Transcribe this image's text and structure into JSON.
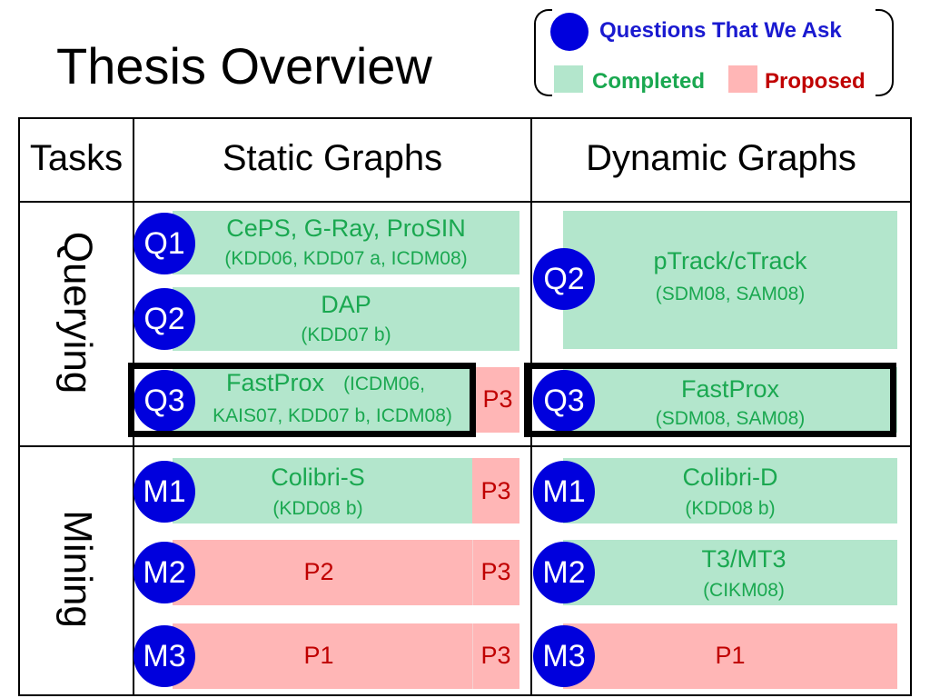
{
  "title": "Thesis Overview",
  "legend": {
    "questions": "Questions That We Ask",
    "completed": "Completed",
    "proposed": "Proposed",
    "colors": {
      "question": "#0000dd",
      "completed": "#b3e6cc",
      "proposed": "#ffb6b6"
    }
  },
  "headers": {
    "tasks": "Tasks",
    "static": "Static Graphs",
    "dynamic": "Dynamic Graphs"
  },
  "rows": {
    "querying": "Querying",
    "mining": "Mining"
  },
  "static": {
    "q1": {
      "label": "Q1",
      "main": "CePS, G-Ray, ProSIN",
      "sub": "(KDD06, KDD07 a, ICDM08)"
    },
    "q2": {
      "label": "Q2",
      "main": "DAP",
      "sub": "(KDD07 b)"
    },
    "q3": {
      "label": "Q3",
      "main": "FastProx",
      "main_cite": "(ICDM06,",
      "sub": "KAIS07, KDD07 b,  ICDM08)",
      "p": "P3"
    },
    "m1": {
      "label": "M1",
      "main": "Colibri-S",
      "sub": "(KDD08 b)",
      "p": "P3"
    },
    "m2": {
      "label": "M2",
      "main": "P2",
      "p": "P3"
    },
    "m3": {
      "label": "M3",
      "main": "P1",
      "p": "P3"
    }
  },
  "dynamic": {
    "q2": {
      "label": "Q2",
      "main": "pTrack/cTrack",
      "sub": "(SDM08,  SAM08)"
    },
    "q3": {
      "label": "Q3",
      "main": "FastProx",
      "sub": "(SDM08, SAM08)"
    },
    "m1": {
      "label": "M1",
      "main": "Colibri-D",
      "sub": "(KDD08 b)"
    },
    "m2": {
      "label": "M2",
      "main": "T3/MT3",
      "sub": "(CIKM08)"
    },
    "m3": {
      "label": "M3",
      "main": "P1"
    }
  }
}
